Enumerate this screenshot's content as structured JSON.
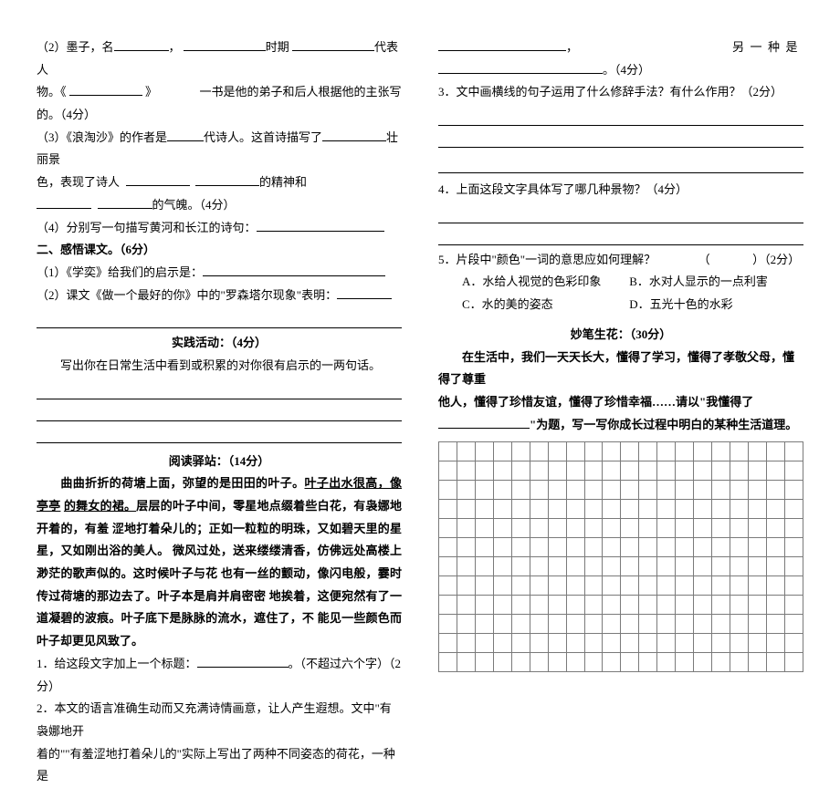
{
  "left": {
    "q2": {
      "pre": "（2）墨子，名",
      "a": "，",
      "b": "时期",
      "c": "代表人",
      "line2a": "物。《",
      "line2b": "》",
      "line2c": "一书是他的弟子和后人根据他的主张写",
      "line3": "的。（4分）"
    },
    "q3": {
      "a": "（3）《浪淘沙》的作者是",
      "b": "代诗人。这首诗描写了",
      "c": "壮丽景",
      "line2a": "色，表现了诗人",
      "line2b": "的精神和",
      "line3": "的气魄。（4分）"
    },
    "q4": "（4）分别写一句描写黄河和长江的诗句：",
    "sec2_title": "二、感悟课文。（6分）",
    "sec2_q1": "（1）《学奕》给我们的启示是：",
    "sec2_q2": "（2）课文《做一个最好的你》中的\"罗森塔尔现象\"表明：",
    "practice_title": "实践活动：（4分）",
    "practice_desc": "写出你在日常生活中看到或积累的对你很有启示的一两句话。",
    "read_title": "阅读驿站：（14分）",
    "passage": {
      "p1a": "曲曲折折的荷塘上面，弥望的是田田的叶子。",
      "p1b": "叶子出水很高，像亭亭",
      "p1c": "的舞女的裙。",
      "p1d": "层层的叶子中间，零星地点缀着些白花，有袅娜地开着的，有羞",
      "p2": "涩地打着朵儿的；正如一粒粒的明珠，又如碧天里的星星，又如刚出浴的美人。",
      "p3": "微风过处，送来缕缕清香，仿佛远处高楼上渺茫的歌声似的。这时候叶子与花",
      "p4": "也有一丝的颤动，像闪电般，霎时传过荷塘的那边去了。叶子本是肩并肩密密",
      "p5": "地挨着，这便宛然有了一道凝碧的波痕。叶子底下是脉脉的流水，遮住了，不",
      "p6": "能见一些颜色而叶子却更见风致了。"
    },
    "rq1a": "1．给这段文字加上一个标题：",
    "rq1b": "。（不超过六个字）（2分）",
    "rq2a": "2．本文的语言准确生动而又充满诗情画意，让人产生遐想。文中\"有袅娜地开",
    "rq2b": "着的\"\"有羞涩地打着朵儿的\"实际上写出了两种不同姿态的荷花，一种是"
  },
  "right": {
    "top_a": "，",
    "top_b": "另一种是",
    "top_c": "。（4分）",
    "rq3": "3．文中画横线的句子运用了什么修辞手法？有什么作用？（2分）",
    "rq4": "4．上面这段文字具体写了哪几种景物？（4分）",
    "rq5a": "5．片段中\"颜色\"一词的意思应如何理解？",
    "rq5b": "（",
    "rq5c": "）（2分）",
    "optA": "A．水给人视觉的色彩印象",
    "optB": "B．水对人显示的一点利害",
    "optC": "C．水的美的姿态",
    "optD": "D．五光十色的水彩",
    "write_title": "妙笔生花：（30分）",
    "write_p1": "在生活中，我们一天天长大，懂得了学习，懂得了孝敬父母，懂得了尊重",
    "write_p2": "他人，懂得了珍惜友谊，懂得了珍惜幸福……请以\"我懂得了",
    "write_p3": "\"为题，写一写你成长过程中明白的某种生活道理。"
  },
  "grid": {
    "rows": 12,
    "cols": 20
  }
}
